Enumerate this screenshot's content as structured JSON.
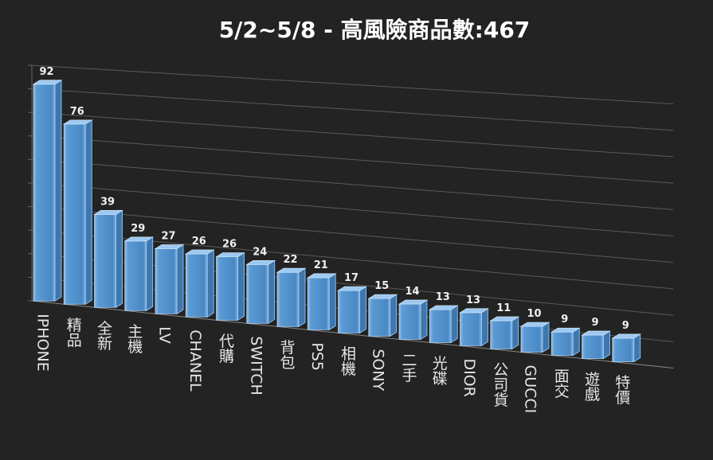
{
  "chart_data": {
    "type": "bar3d",
    "title": "5/2~5/8 - 高風險商品數:467",
    "categories": [
      "IPHONE",
      "精品",
      "全新",
      "主機",
      "LV",
      "CHANEL",
      "代購",
      "SWITCH",
      "背包",
      "PS5",
      "相機",
      "SONY",
      "二手",
      "光碟",
      "DIOR",
      "公司貨",
      "GUCCI",
      "面交",
      "遊戲",
      "特價"
    ],
    "values": [
      92,
      76,
      39,
      29,
      27,
      26,
      26,
      24,
      22,
      21,
      17,
      15,
      14,
      13,
      13,
      11,
      10,
      9,
      9,
      9
    ],
    "color": "#5b9bd5",
    "ylim": [
      0,
      100
    ],
    "yticks": [
      0,
      10,
      20,
      30,
      40,
      50,
      60,
      70,
      80,
      90,
      100
    ],
    "grid": true
  }
}
